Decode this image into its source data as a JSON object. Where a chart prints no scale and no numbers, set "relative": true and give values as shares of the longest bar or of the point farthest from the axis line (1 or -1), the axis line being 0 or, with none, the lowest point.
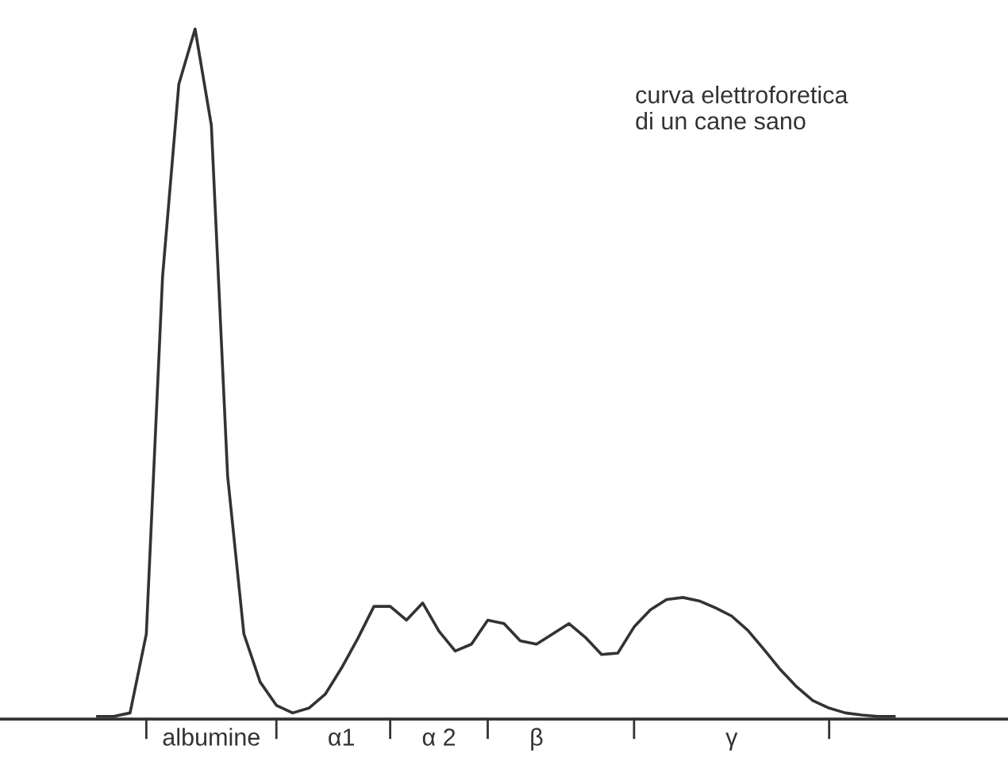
{
  "chart_data": {
    "type": "line",
    "relative": true,
    "categories": [
      null,
      null,
      null,
      null,
      null,
      null,
      null,
      "albumine",
      null,
      null,
      null,
      null,
      null,
      null,
      null,
      "α1",
      null,
      null,
      null,
      null,
      null,
      "α 2",
      null,
      null,
      null,
      null,
      null,
      "β",
      null,
      null,
      null,
      null,
      null,
      null,
      null,
      null,
      null,
      null,
      null,
      "γ",
      null,
      null,
      null,
      null,
      null,
      null,
      null,
      null,
      null,
      null
    ],
    "series": [
      {
        "color": "#333333",
        "values": [
          0,
          0,
          0.005,
          0.12,
          0.64,
          0.92,
          1,
          0.86,
          0.35,
          0.12,
          0.05,
          0.016,
          0.005,
          0.012,
          0.032,
          0.07,
          0.113,
          0.16,
          0.16,
          0.14,
          0.165,
          0.124,
          0.095,
          0.105,
          0.14,
          0.135,
          0.11,
          0.105,
          0.12,
          0.135,
          0.115,
          0.09,
          0.092,
          0.13,
          0.155,
          0.17,
          0.173,
          0.168,
          0.158,
          0.146,
          0.125,
          0.097,
          0.068,
          0.043,
          0.023,
          0.012,
          0.005,
          0.002,
          0,
          0
        ]
      }
    ],
    "annotations": [
      "curva elettroforetica\ndi un cane sano"
    ]
  }
}
